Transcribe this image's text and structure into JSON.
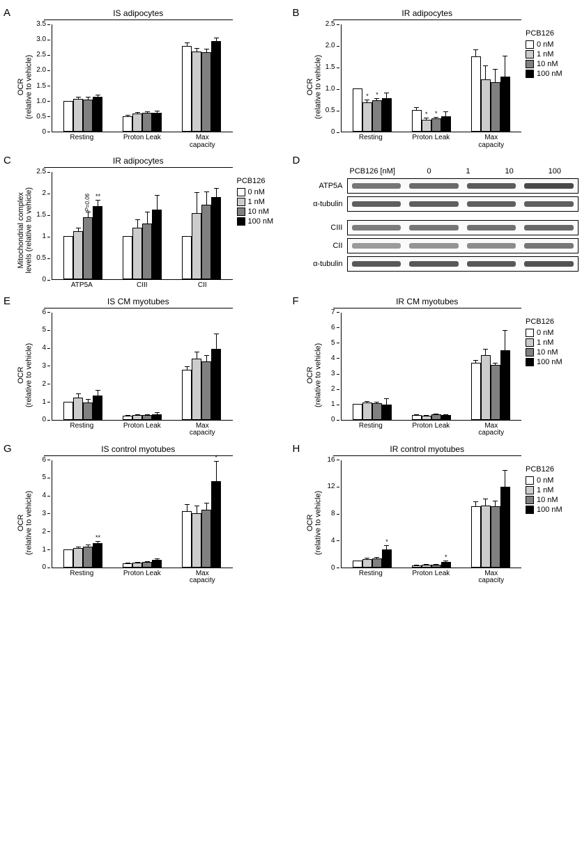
{
  "colors": {
    "legend_colors": [
      "#ffffff",
      "#cccccc",
      "#808080",
      "#000000"
    ],
    "axis_color": "#000000",
    "background": "#ffffff",
    "band_shades": [
      "#b8b8b8",
      "#a8a8a8",
      "#989898",
      "#808080"
    ]
  },
  "legend": {
    "title": "PCB126",
    "items": [
      "0 nM",
      "1 nM",
      "10 nM",
      "100 nM"
    ]
  },
  "common": {
    "ylabel_ocr": "OCR\n(relative to vehicle)",
    "ylabel_mito": "Mitochondrial complex\nlevels (relative to vehicle)",
    "group_labels": [
      "Resting",
      "Proton Leak",
      "Max\ncapacity"
    ],
    "group_labels_c": [
      "ATP5A",
      "CIII",
      "CII"
    ]
  },
  "panels": {
    "A": {
      "label": "A",
      "title": "IS adipocytes",
      "show_legend": false,
      "ymax": 3.5,
      "yticks": [
        "0",
        "0.5",
        "1.0",
        "1.5",
        "2.0",
        "2.5",
        "3.0",
        "3.5"
      ],
      "groups": [
        {
          "vals": [
            1.0,
            1.06,
            1.05,
            1.12
          ],
          "errs": [
            0.0,
            0.06,
            0.07,
            0.08
          ],
          "sigs": [
            "",
            "",
            "",
            ""
          ]
        },
        {
          "vals": [
            0.5,
            0.58,
            0.6,
            0.62
          ],
          "errs": [
            0.04,
            0.05,
            0.05,
            0.06
          ],
          "sigs": [
            "",
            "",
            "",
            ""
          ]
        },
        {
          "vals": [
            2.78,
            2.6,
            2.58,
            2.93
          ],
          "errs": [
            0.1,
            0.12,
            0.1,
            0.12
          ],
          "sigs": [
            "",
            "",
            "",
            ""
          ]
        }
      ]
    },
    "B": {
      "label": "B",
      "title": "IR adipocytes",
      "show_legend": true,
      "ymax": 2.5,
      "yticks": [
        "0",
        "0.5",
        "1.0",
        "1.5",
        "2.0",
        "2.5"
      ],
      "groups": [
        {
          "vals": [
            1.0,
            0.68,
            0.72,
            0.77
          ],
          "errs": [
            0.0,
            0.07,
            0.05,
            0.14
          ],
          "sigs": [
            "",
            "*",
            "*",
            ""
          ]
        },
        {
          "vals": [
            0.5,
            0.28,
            0.3,
            0.36
          ],
          "errs": [
            0.07,
            0.05,
            0.04,
            0.11
          ],
          "sigs": [
            "",
            "*",
            "*",
            ""
          ]
        },
        {
          "vals": [
            1.74,
            1.21,
            1.15,
            1.28
          ],
          "errs": [
            0.17,
            0.32,
            0.3,
            0.48
          ],
          "sigs": [
            "",
            "",
            "",
            ""
          ]
        }
      ]
    },
    "C": {
      "label": "C",
      "title": "IR adipocytes",
      "show_legend": true,
      "legend_below": true,
      "ymax": 2.5,
      "yticks": [
        "0",
        "0.5",
        "1",
        "1.5",
        "2",
        "2.5"
      ],
      "groups": [
        {
          "vals": [
            1.0,
            1.12,
            1.44,
            1.7
          ],
          "errs": [
            0.0,
            0.08,
            0.13,
            0.14
          ],
          "sigs": [
            "",
            "",
            "P=0.06",
            "**"
          ]
        },
        {
          "vals": [
            1.0,
            1.19,
            1.29,
            1.61
          ],
          "errs": [
            0.0,
            0.19,
            0.27,
            0.34
          ],
          "sigs": [
            "",
            "",
            "",
            ""
          ]
        },
        {
          "vals": [
            1.0,
            1.54,
            1.73,
            1.91
          ],
          "errs": [
            0.0,
            0.48,
            0.3,
            0.21
          ],
          "sigs": [
            "",
            "",
            "",
            ""
          ]
        }
      ]
    },
    "D": {
      "label": "D",
      "header_label": "PCB126 [nM]",
      "concentrations": [
        "0",
        "1",
        "10",
        "100"
      ],
      "rows": [
        {
          "label": "ATP5A",
          "intensity": [
            0.55,
            0.62,
            0.72,
            0.85
          ],
          "gap": false
        },
        {
          "label": "α-tubulin",
          "intensity": [
            0.7,
            0.7,
            0.7,
            0.7
          ],
          "gap": false
        },
        {
          "label": "CIII",
          "intensity": [
            0.5,
            0.55,
            0.58,
            0.65
          ],
          "gap": true
        },
        {
          "label": "CII",
          "intensity": [
            0.3,
            0.35,
            0.4,
            0.55
          ],
          "gap": false
        },
        {
          "label": "α-tubulin",
          "intensity": [
            0.75,
            0.75,
            0.75,
            0.78
          ],
          "gap": false
        }
      ]
    },
    "E": {
      "label": "E",
      "title": "IS CM myotubes",
      "show_legend": false,
      "ymax": 6,
      "yticks": [
        "0",
        "1",
        "2",
        "3",
        "4",
        "5",
        "6"
      ],
      "groups": [
        {
          "vals": [
            1.0,
            1.23,
            0.95,
            1.35
          ],
          "errs": [
            0.0,
            0.22,
            0.18,
            0.31
          ],
          "sigs": [
            "",
            "",
            "",
            ""
          ]
        },
        {
          "vals": [
            0.22,
            0.25,
            0.24,
            0.3
          ],
          "errs": [
            0.05,
            0.06,
            0.05,
            0.1
          ],
          "sigs": [
            "",
            "",
            "",
            ""
          ]
        },
        {
          "vals": [
            2.78,
            3.38,
            3.25,
            3.92
          ],
          "errs": [
            0.2,
            0.4,
            0.35,
            0.86
          ],
          "sigs": [
            "",
            "",
            "",
            ""
          ]
        }
      ]
    },
    "F": {
      "label": "F",
      "title": "IR CM myotubes",
      "show_legend": true,
      "ymax": 7,
      "yticks": [
        "0",
        "1",
        "2",
        "3",
        "4",
        "5",
        "6",
        "7"
      ],
      "groups": [
        {
          "vals": [
            1.0,
            1.12,
            1.05,
            0.97
          ],
          "errs": [
            0.0,
            0.09,
            0.12,
            0.42
          ],
          "sigs": [
            "",
            "",
            "",
            ""
          ]
        },
        {
          "vals": [
            0.3,
            0.25,
            0.32,
            0.28
          ],
          "errs": [
            0.05,
            0.04,
            0.08,
            0.08
          ],
          "sigs": [
            "",
            "",
            "",
            ""
          ]
        },
        {
          "vals": [
            3.7,
            4.18,
            3.55,
            4.5
          ],
          "errs": [
            0.15,
            0.42,
            0.12,
            1.3
          ],
          "sigs": [
            "",
            "",
            "",
            ""
          ]
        }
      ]
    },
    "G": {
      "label": "G",
      "title": "IS control myotubes",
      "show_legend": false,
      "ymax": 6,
      "yticks": [
        "0",
        "1",
        "2",
        "3",
        "4",
        "5",
        "6"
      ],
      "groups": [
        {
          "vals": [
            1.0,
            1.08,
            1.15,
            1.35
          ],
          "errs": [
            0.0,
            0.07,
            0.1,
            0.12
          ],
          "sigs": [
            "",
            "",
            "",
            "**"
          ]
        },
        {
          "vals": [
            0.2,
            0.25,
            0.28,
            0.4
          ],
          "errs": [
            0.04,
            0.05,
            0.05,
            0.08
          ],
          "sigs": [
            "",
            "",
            "",
            ""
          ]
        },
        {
          "vals": [
            3.1,
            3.0,
            3.2,
            4.78
          ],
          "errs": [
            0.4,
            0.42,
            0.38,
            1.12
          ],
          "sigs": [
            "",
            "",
            "",
            "*"
          ]
        }
      ]
    },
    "H": {
      "label": "H",
      "title": "IR control myotubes",
      "show_legend": true,
      "ymax": 16,
      "yticks": [
        "0",
        "4",
        "8",
        "12",
        "16"
      ],
      "groups": [
        {
          "vals": [
            1.0,
            1.22,
            1.25,
            2.6
          ],
          "errs": [
            0.0,
            0.18,
            0.2,
            0.7
          ],
          "sigs": [
            "",
            "",
            "",
            "*"
          ]
        },
        {
          "vals": [
            0.3,
            0.35,
            0.38,
            0.8
          ],
          "errs": [
            0.06,
            0.07,
            0.07,
            0.15
          ],
          "sigs": [
            "",
            "",
            "",
            "*"
          ]
        },
        {
          "vals": [
            9.0,
            9.1,
            9.0,
            11.9
          ],
          "errs": [
            0.8,
            1.1,
            0.9,
            2.5
          ],
          "sigs": [
            "",
            "",
            "",
            ""
          ]
        }
      ]
    }
  }
}
